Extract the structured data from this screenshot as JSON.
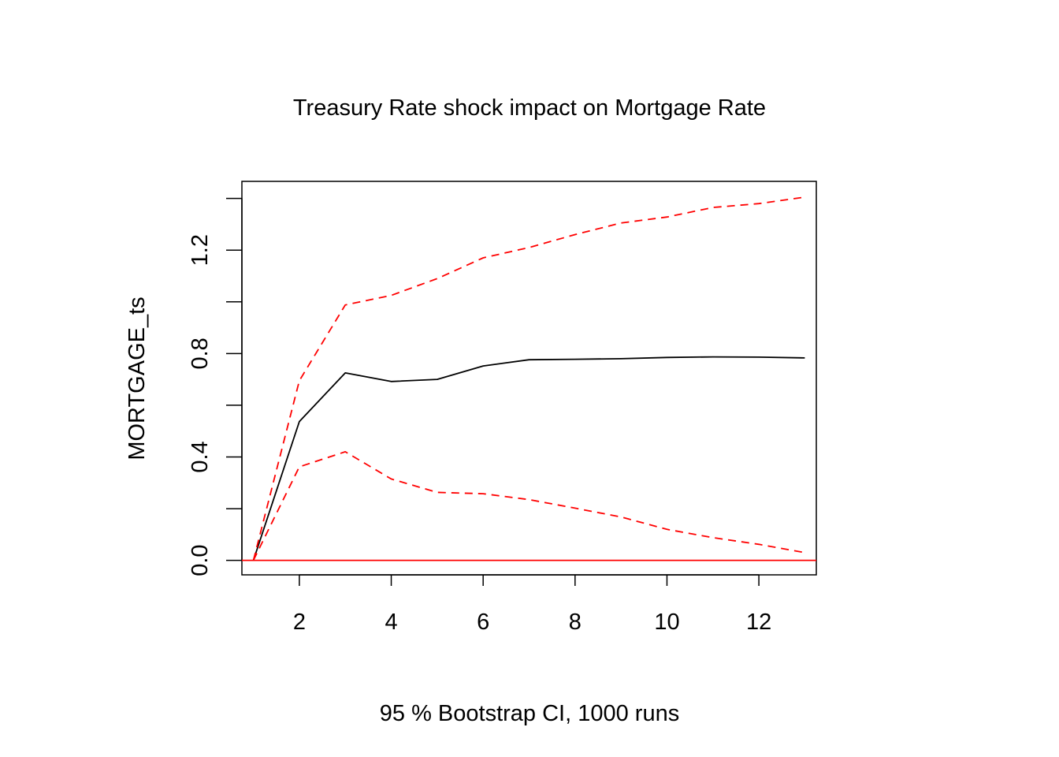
{
  "chart_data": {
    "type": "line",
    "title": "Treasury Rate shock impact on Mortgage Rate",
    "xlabel": "95 % Bootstrap CI,  1000 runs",
    "ylabel": "MORTGAGE_ts",
    "xlim": [
      0.75,
      13.25
    ],
    "ylim": [
      -0.056,
      1.466
    ],
    "x_ticks": [
      2,
      4,
      6,
      8,
      10,
      12
    ],
    "y_ticks": [
      0.0,
      0.2,
      0.4,
      0.6,
      0.8,
      1.0,
      1.2,
      1.4
    ],
    "y_tick_labels": [
      "0.0",
      "",
      "0.4",
      "",
      "0.8",
      "",
      "1.2",
      ""
    ],
    "grid": false,
    "x": [
      1,
      2,
      3,
      4,
      5,
      6,
      7,
      8,
      9,
      10,
      11,
      12,
      13
    ],
    "series": [
      {
        "role": "irf",
        "color": "#000000",
        "dash": "solid",
        "values": [
          0.0,
          0.537,
          0.725,
          0.692,
          0.7,
          0.752,
          0.776,
          0.778,
          0.78,
          0.785,
          0.787,
          0.786,
          0.783
        ]
      },
      {
        "role": "upper",
        "color": "#ff0000",
        "dash": "dashed",
        "values": [
          0.0,
          0.695,
          0.988,
          1.025,
          1.09,
          1.17,
          1.21,
          1.26,
          1.305,
          1.328,
          1.365,
          1.38,
          1.405
        ]
      },
      {
        "role": "lower",
        "color": "#ff0000",
        "dash": "dashed",
        "values": [
          0.0,
          0.362,
          0.42,
          0.315,
          0.263,
          0.258,
          0.235,
          0.202,
          0.168,
          0.12,
          0.088,
          0.062,
          0.03
        ]
      }
    ],
    "hline": {
      "y": 0,
      "color": "#ff0000"
    }
  }
}
